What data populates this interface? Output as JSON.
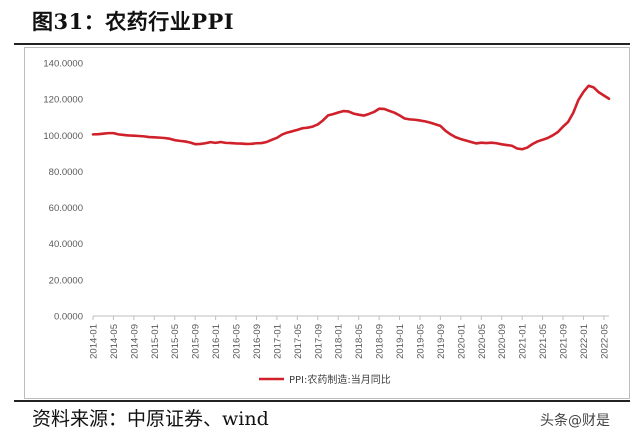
{
  "figure": {
    "title": "图31：农药行业PPI",
    "source": "资料来源：中原证券、wind",
    "watermark": "头条@财是"
  },
  "colors": {
    "series": "#d0202a",
    "axis": "#bfbfbf",
    "tick_text": "#595959"
  },
  "chart_data": {
    "type": "line",
    "title": "",
    "xlabel": "",
    "ylabel": "",
    "ylim": [
      0,
      140
    ],
    "yticks": [
      "0.0000",
      "20.0000",
      "40.0000",
      "60.0000",
      "80.0000",
      "100.0000",
      "120.0000",
      "140.0000"
    ],
    "xticks": [
      "2014-01",
      "2014-05",
      "2014-09",
      "2015-01",
      "2015-05",
      "2015-09",
      "2016-01",
      "2016-05",
      "2016-09",
      "2017-01",
      "2017-05",
      "2017-09",
      "2018-01",
      "2018-05",
      "2018-09",
      "2019-01",
      "2019-05",
      "2019-09",
      "2020-01",
      "2020-05",
      "2020-09",
      "2021-01",
      "2021-05",
      "2021-09",
      "2022-01",
      "2022-05"
    ],
    "grid": false,
    "legend_position": "bottom",
    "series": [
      {
        "name": "PPI:农药制造:当月同比",
        "x": [
          "2014-01",
          "2014-02",
          "2014-03",
          "2014-04",
          "2014-05",
          "2014-06",
          "2014-07",
          "2014-08",
          "2014-09",
          "2014-10",
          "2014-11",
          "2014-12",
          "2015-01",
          "2015-02",
          "2015-03",
          "2015-04",
          "2015-05",
          "2015-06",
          "2015-07",
          "2015-08",
          "2015-09",
          "2015-10",
          "2015-11",
          "2015-12",
          "2016-01",
          "2016-02",
          "2016-03",
          "2016-04",
          "2016-05",
          "2016-06",
          "2016-07",
          "2016-08",
          "2016-09",
          "2016-10",
          "2016-11",
          "2016-12",
          "2017-01",
          "2017-02",
          "2017-03",
          "2017-04",
          "2017-05",
          "2017-06",
          "2017-07",
          "2017-08",
          "2017-09",
          "2017-10",
          "2017-11",
          "2017-12",
          "2018-01",
          "2018-02",
          "2018-03",
          "2018-04",
          "2018-05",
          "2018-06",
          "2018-07",
          "2018-08",
          "2018-09",
          "2018-10",
          "2018-11",
          "2018-12",
          "2019-01",
          "2019-02",
          "2019-03",
          "2019-04",
          "2019-05",
          "2019-06",
          "2019-07",
          "2019-08",
          "2019-09",
          "2019-10",
          "2019-11",
          "2019-12",
          "2020-01",
          "2020-02",
          "2020-03",
          "2020-04",
          "2020-05",
          "2020-06",
          "2020-07",
          "2020-08",
          "2020-09",
          "2020-10",
          "2020-11",
          "2020-12",
          "2021-01",
          "2021-02",
          "2021-03",
          "2021-04",
          "2021-05",
          "2021-06",
          "2021-07",
          "2021-08",
          "2021-09",
          "2021-10",
          "2021-11",
          "2021-12",
          "2022-01",
          "2022-02",
          "2022-03",
          "2022-04",
          "2022-05",
          "2022-06"
        ],
        "values": [
          100.5,
          100.6,
          100.9,
          101.2,
          101.2,
          100.5,
          100.2,
          99.9,
          99.8,
          99.6,
          99.4,
          99.0,
          98.9,
          98.7,
          98.5,
          98.1,
          97.3,
          96.9,
          96.6,
          96.0,
          95.1,
          95.2,
          95.6,
          96.2,
          95.8,
          96.3,
          95.8,
          95.7,
          95.5,
          95.4,
          95.2,
          95.3,
          95.6,
          95.7,
          96.3,
          97.5,
          98.6,
          100.4,
          101.5,
          102.2,
          103.0,
          103.9,
          104.2,
          104.8,
          106.0,
          108.2,
          111.0,
          111.7,
          112.6,
          113.4,
          113.2,
          112.0,
          111.4,
          110.9,
          111.8,
          112.9,
          114.7,
          114.6,
          113.5,
          112.5,
          111.0,
          109.3,
          108.8,
          108.6,
          108.2,
          107.7,
          107.0,
          106.1,
          105.2,
          102.5,
          100.5,
          98.9,
          97.9,
          97.1,
          96.3,
          95.5,
          95.9,
          95.7,
          95.9,
          95.6,
          95.0,
          94.6,
          94.2,
          92.7,
          92.3,
          93.2,
          95.1,
          96.6,
          97.5,
          98.5,
          100.0,
          101.8,
          104.8,
          107.4,
          112.4,
          119.5,
          124.0,
          127.4,
          126.5,
          123.8,
          122.0,
          120.2
        ]
      }
    ]
  }
}
